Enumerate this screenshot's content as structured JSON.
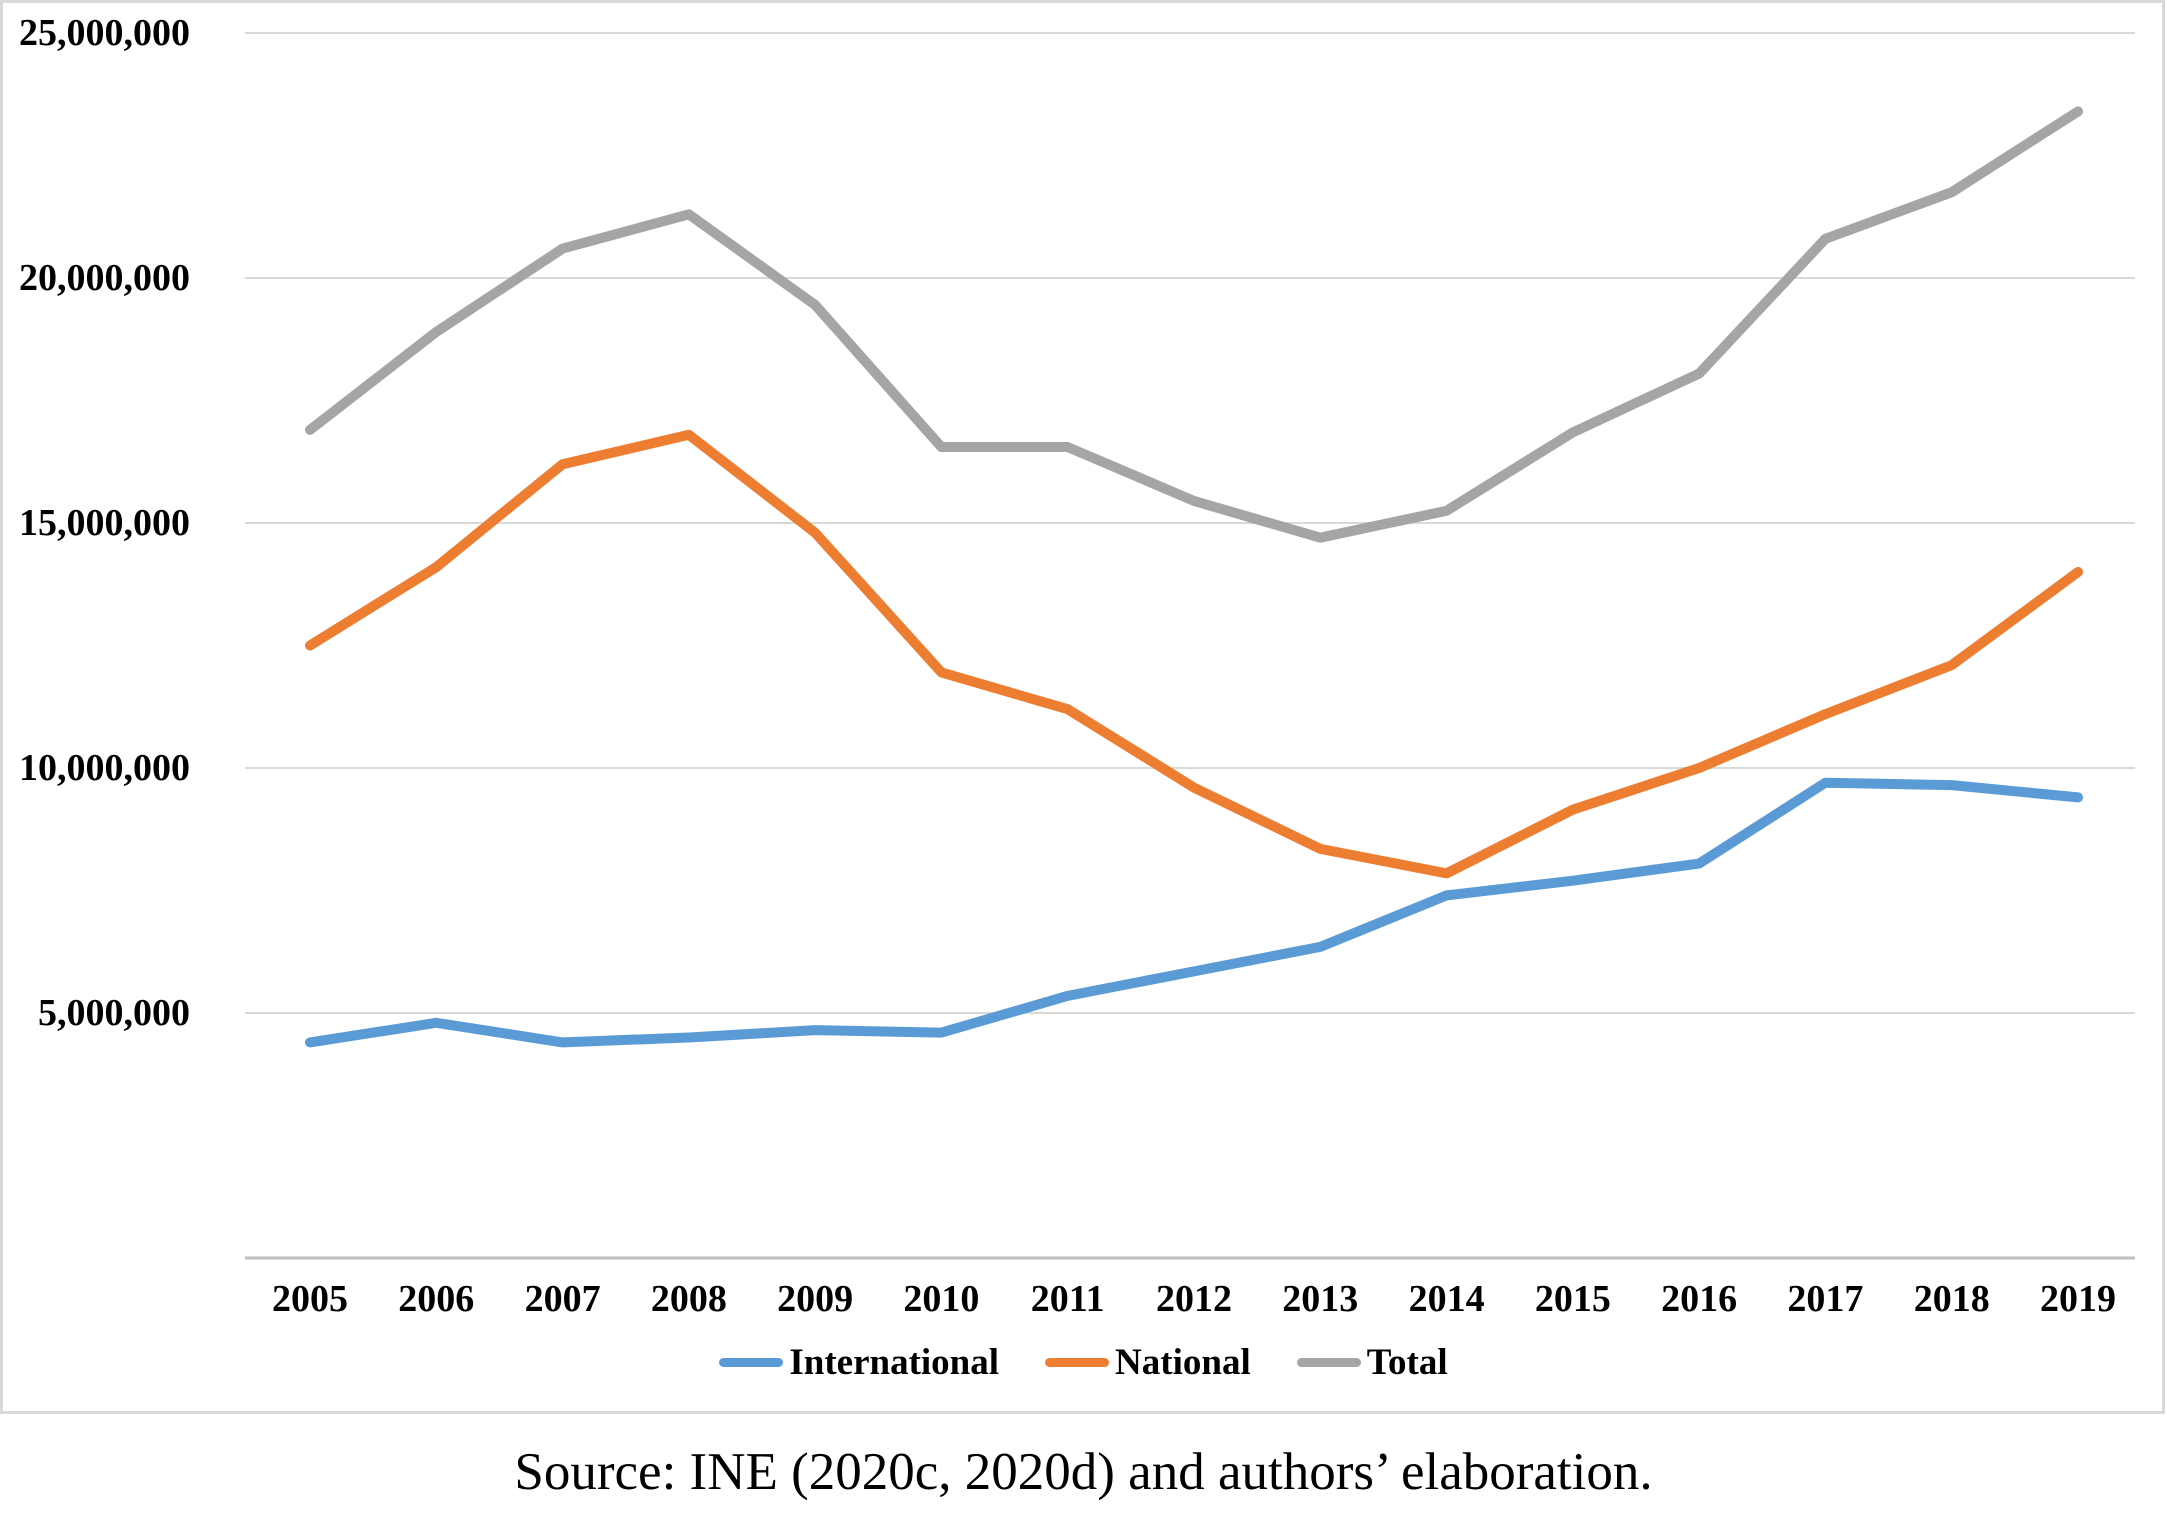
{
  "caption": {
    "text": "Source: INE (2020c, 2020d) and authors’ elaboration."
  },
  "colors": {
    "international": "#5B9BD5",
    "national": "#ED7D31",
    "total": "#A5A5A5",
    "gridline": "#D9D9D9",
    "axis_line": "#BFBFBF",
    "frame_border": "#D9D9D9",
    "text": "#000000"
  },
  "chart_data": {
    "type": "line",
    "title": "",
    "xlabel": "",
    "ylabel": "",
    "x_labels": [
      "2005",
      "2006",
      "2007",
      "2008",
      "2009",
      "2010",
      "2011",
      "2012",
      "2013",
      "2014",
      "2015",
      "2016",
      "2017",
      "2018",
      "2019"
    ],
    "y_axis": {
      "tick_labels": [
        "25,000,000",
        "20,000,000",
        "15,000,000",
        "10,000,000",
        "5,000,000"
      ],
      "tick_values": [
        25000000,
        20000000,
        15000000,
        10000000,
        5000000
      ]
    },
    "ylim": [
      0,
      25000000
    ],
    "grid": true,
    "legend_position": "bottom",
    "series": [
      {
        "name": "International",
        "color": "#5B9BD5",
        "values": [
          4400000,
          4800000,
          4400000,
          4500000,
          4650000,
          4600000,
          5350000,
          5850000,
          6350000,
          7400000,
          7700000,
          8050000,
          9700000,
          9650000,
          9400000
        ]
      },
      {
        "name": "National",
        "color": "#ED7D31",
        "values": [
          12500000,
          14100000,
          16200000,
          16800000,
          14800000,
          11950000,
          11200000,
          9600000,
          8350000,
          7850000,
          9150000,
          10000000,
          11100000,
          12100000,
          14000000
        ]
      },
      {
        "name": "Total",
        "color": "#A5A5A5",
        "values": [
          16900000,
          18900000,
          20600000,
          21300000,
          19450000,
          16550000,
          16550000,
          15450000,
          14700000,
          15250000,
          16850000,
          18050000,
          20800000,
          21750000,
          23400000
        ]
      }
    ]
  }
}
